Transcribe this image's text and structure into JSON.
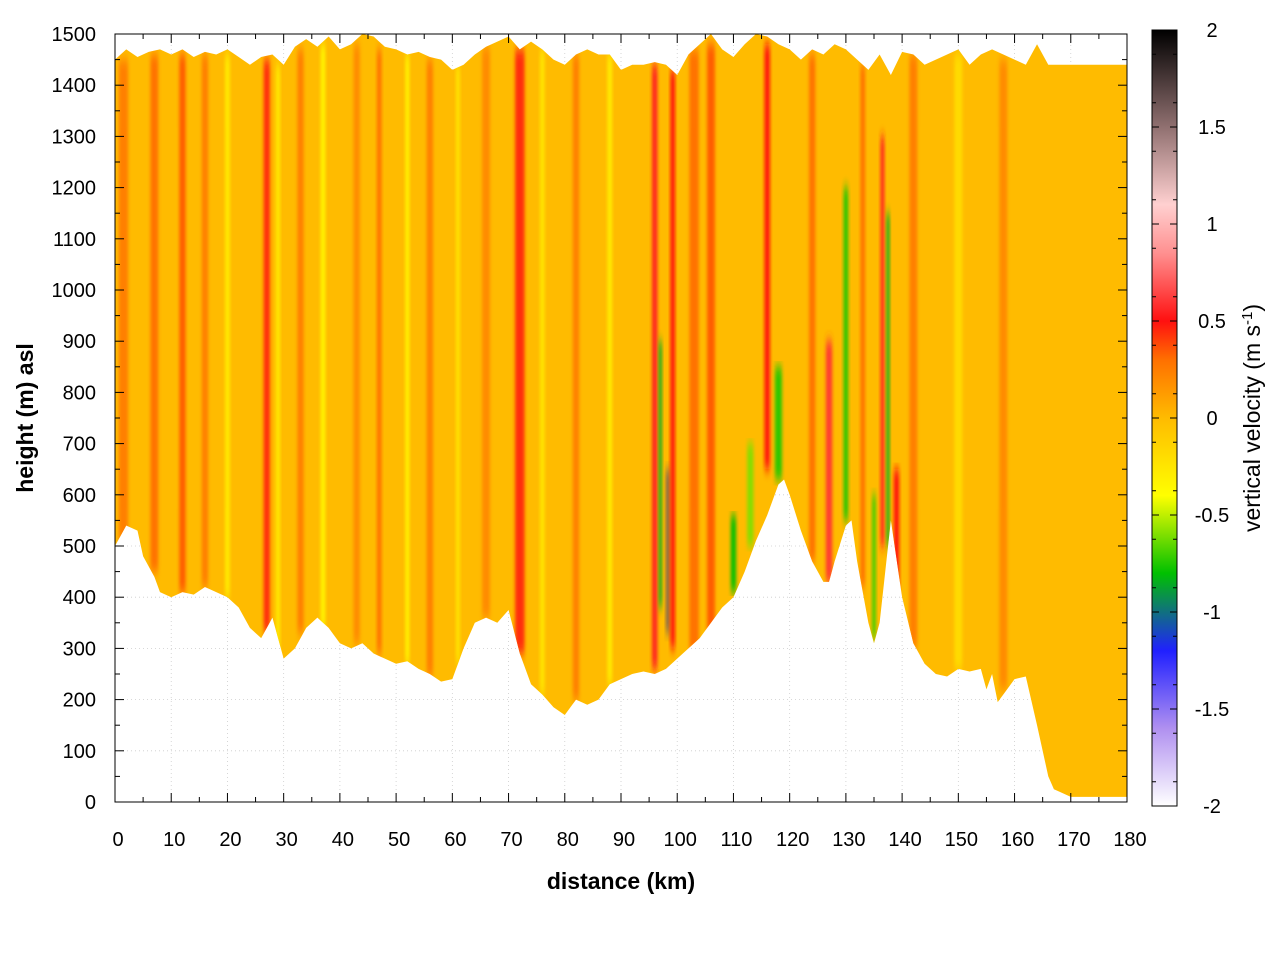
{
  "chart_data": {
    "type": "heatmap",
    "title": "",
    "xlabel": "distance (km)",
    "ylabel": "height (m) asl",
    "xlim": [
      0,
      180
    ],
    "ylim": [
      0,
      1500
    ],
    "x_ticks": [
      0,
      10,
      20,
      30,
      40,
      50,
      60,
      70,
      80,
      90,
      100,
      110,
      120,
      130,
      140,
      150,
      160,
      170,
      180
    ],
    "y_ticks": [
      0,
      100,
      200,
      300,
      400,
      500,
      600,
      700,
      800,
      900,
      1000,
      1100,
      1200,
      1300,
      1400,
      1500
    ],
    "grid": true,
    "colorbar": {
      "label_main": "vertical velocity (m s",
      "label_sup": "-1",
      "label_end": ")",
      "range": [
        -2,
        2
      ],
      "ticks": [
        "2",
        "1.5",
        "1",
        "0.5",
        "0",
        "-0.5",
        "-1",
        "-1.5",
        "-2"
      ],
      "tick_values": [
        2,
        1.5,
        1,
        0.5,
        0,
        -0.5,
        -1,
        -1.5,
        -2
      ],
      "stops": [
        {
          "value": -2.0,
          "color": "#ffffff"
        },
        {
          "value": -1.6,
          "color": "#b090f0"
        },
        {
          "value": -1.2,
          "color": "#2020ff"
        },
        {
          "value": -0.8,
          "color": "#00c000"
        },
        {
          "value": -0.4,
          "color": "#ffff00"
        },
        {
          "value": 0.0,
          "color": "#ffbb00"
        },
        {
          "value": 0.3,
          "color": "#ff7000"
        },
        {
          "value": 0.5,
          "color": "#ff1010"
        },
        {
          "value": 0.85,
          "color": "#ff9090"
        },
        {
          "value": 1.1,
          "color": "#ffd0d0"
        },
        {
          "value": 1.5,
          "color": "#907070"
        },
        {
          "value": 2.0,
          "color": "#000000"
        }
      ]
    },
    "background_value": 0.0,
    "terrain_height": {
      "x": [
        0,
        2,
        4,
        5,
        6,
        7,
        8,
        10,
        12,
        14,
        16,
        18,
        20,
        22,
        24,
        26,
        28,
        30,
        32,
        34,
        36,
        38,
        40,
        42,
        44,
        46,
        48,
        50,
        52,
        54,
        56,
        58,
        60,
        62,
        64,
        66,
        68,
        70,
        72,
        74,
        76,
        78,
        80,
        82,
        84,
        86,
        88,
        90,
        92,
        94,
        96,
        98,
        100,
        102,
        104,
        106,
        108,
        110,
        112,
        114,
        116,
        118,
        119,
        120,
        122,
        124,
        126,
        127,
        128,
        130,
        131,
        132,
        134,
        135,
        136,
        137,
        138,
        140,
        142,
        144,
        146,
        148,
        150,
        152,
        154,
        155,
        156,
        157,
        158,
        160,
        162,
        164,
        166,
        167,
        168,
        170,
        175,
        180
      ],
      "height": [
        500,
        540,
        530,
        480,
        460,
        440,
        410,
        400,
        410,
        405,
        420,
        410,
        400,
        380,
        340,
        320,
        360,
        280,
        300,
        340,
        360,
        340,
        310,
        300,
        310,
        290,
        280,
        270,
        275,
        260,
        250,
        235,
        240,
        300,
        350,
        360,
        350,
        375,
        290,
        230,
        210,
        185,
        170,
        200,
        190,
        200,
        230,
        240,
        250,
        255,
        250,
        260,
        280,
        300,
        320,
        350,
        380,
        400,
        450,
        510,
        560,
        620,
        630,
        600,
        530,
        470,
        430,
        430,
        470,
        540,
        550,
        470,
        350,
        310,
        350,
        450,
        550,
        400,
        310,
        270,
        250,
        245,
        260,
        255,
        260,
        220,
        250,
        195,
        210,
        240,
        245,
        150,
        50,
        25,
        20,
        10,
        10,
        10
      ]
    },
    "top_height": {
      "x": [
        0,
        2,
        4,
        6,
        8,
        10,
        12,
        14,
        16,
        18,
        20,
        22,
        24,
        26,
        28,
        30,
        32,
        34,
        36,
        38,
        40,
        42,
        44,
        46,
        48,
        50,
        52,
        54,
        56,
        58,
        60,
        62,
        64,
        66,
        68,
        70,
        72,
        74,
        76,
        78,
        80,
        82,
        84,
        86,
        88,
        90,
        92,
        94,
        96,
        98,
        100,
        102,
        104,
        106,
        108,
        110,
        112,
        114,
        116,
        118,
        120,
        122,
        124,
        126,
        128,
        130,
        132,
        134,
        136,
        138,
        140,
        142,
        144,
        146,
        148,
        150,
        152,
        154,
        156,
        158,
        160,
        162,
        164,
        166,
        168,
        170,
        175,
        180
      ],
      "height": [
        1450,
        1470,
        1455,
        1465,
        1470,
        1460,
        1470,
        1455,
        1465,
        1460,
        1470,
        1455,
        1440,
        1455,
        1460,
        1440,
        1475,
        1490,
        1475,
        1495,
        1470,
        1480,
        1500,
        1495,
        1475,
        1470,
        1460,
        1465,
        1455,
        1450,
        1430,
        1440,
        1460,
        1475,
        1485,
        1495,
        1470,
        1485,
        1470,
        1450,
        1440,
        1460,
        1470,
        1460,
        1460,
        1430,
        1440,
        1440,
        1445,
        1440,
        1420,
        1460,
        1480,
        1500,
        1470,
        1455,
        1480,
        1500,
        1495,
        1480,
        1470,
        1450,
        1470,
        1460,
        1480,
        1470,
        1450,
        1430,
        1460,
        1420,
        1465,
        1460,
        1440,
        1450,
        1460,
        1470,
        1440,
        1460,
        1470,
        1460,
        1450,
        1440,
        1480,
        1440,
        1440,
        1440,
        1440,
        1440
      ]
    },
    "streaks": [
      {
        "x": 1.5,
        "value": 0.25,
        "width": 1.2,
        "ymin": 500,
        "ymax": 1450
      },
      {
        "x": 7,
        "value": 0.3,
        "width": 1.0,
        "ymin": 450,
        "ymax": 1460
      },
      {
        "x": 12,
        "value": 0.35,
        "width": 0.8,
        "ymin": 410,
        "ymax": 1460
      },
      {
        "x": 16,
        "value": 0.25,
        "width": 0.8,
        "ymin": 420,
        "ymax": 1460
      },
      {
        "x": 20,
        "value": -0.3,
        "width": 0.6,
        "ymin": 400,
        "ymax": 1460
      },
      {
        "x": 27,
        "value": 0.45,
        "width": 0.8,
        "ymin": 330,
        "ymax": 1450
      },
      {
        "x": 29,
        "value": -0.3,
        "width": 0.5,
        "ymin": 290,
        "ymax": 1440
      },
      {
        "x": 33,
        "value": 0.25,
        "width": 0.8,
        "ymin": 330,
        "ymax": 1470
      },
      {
        "x": 37,
        "value": -0.35,
        "width": 0.6,
        "ymin": 340,
        "ymax": 1480
      },
      {
        "x": 43,
        "value": 0.2,
        "width": 0.8,
        "ymin": 310,
        "ymax": 1480
      },
      {
        "x": 47,
        "value": 0.3,
        "width": 0.6,
        "ymin": 290,
        "ymax": 1470
      },
      {
        "x": 52,
        "value": -0.35,
        "width": 0.5,
        "ymin": 270,
        "ymax": 1460
      },
      {
        "x": 56,
        "value": 0.25,
        "width": 0.8,
        "ymin": 245,
        "ymax": 1450
      },
      {
        "x": 61,
        "value": -0.25,
        "width": 0.5,
        "ymin": 270,
        "ymax": 1440
      },
      {
        "x": 66,
        "value": 0.2,
        "width": 1.0,
        "ymin": 360,
        "ymax": 1475
      },
      {
        "x": 72,
        "value": 0.45,
        "width": 1.2,
        "ymin": 290,
        "ymax": 1470
      },
      {
        "x": 76,
        "value": -0.25,
        "width": 0.6,
        "ymin": 210,
        "ymax": 1470
      },
      {
        "x": 82,
        "value": 0.25,
        "width": 0.8,
        "ymin": 200,
        "ymax": 1460
      },
      {
        "x": 88,
        "value": -0.3,
        "width": 0.6,
        "ymin": 230,
        "ymax": 1460
      },
      {
        "x": 96,
        "value": 0.55,
        "width": 0.7,
        "ymin": 260,
        "ymax": 1440
      },
      {
        "x": 97,
        "value": -0.85,
        "width": 0.4,
        "ymin": 380,
        "ymax": 900
      },
      {
        "x": 98.3,
        "value": 1.6,
        "width": 0.45,
        "ymin": 330,
        "ymax": 650
      },
      {
        "x": 99.2,
        "value": 0.5,
        "width": 0.6,
        "ymin": 300,
        "ymax": 1430
      },
      {
        "x": 103,
        "value": 0.3,
        "width": 1.2,
        "ymin": 290,
        "ymax": 1470
      },
      {
        "x": 106,
        "value": 0.35,
        "width": 1.0,
        "ymin": 320,
        "ymax": 1480
      },
      {
        "x": 110,
        "value": -0.8,
        "width": 0.7,
        "ymin": 410,
        "ymax": 560
      },
      {
        "x": 113,
        "value": -0.6,
        "width": 0.8,
        "ymin": 500,
        "ymax": 700
      },
      {
        "x": 116,
        "value": 0.5,
        "width": 0.7,
        "ymin": 650,
        "ymax": 1480
      },
      {
        "x": 118,
        "value": -0.75,
        "width": 0.9,
        "ymin": 630,
        "ymax": 850
      },
      {
        "x": 124,
        "value": 0.3,
        "width": 0.8,
        "ymin": 470,
        "ymax": 1460
      },
      {
        "x": 127,
        "value": 0.6,
        "width": 0.8,
        "ymin": 430,
        "ymax": 900
      },
      {
        "x": 130,
        "value": -0.75,
        "width": 0.6,
        "ymin": 550,
        "ymax": 1200
      },
      {
        "x": 133,
        "value": 0.3,
        "width": 0.6,
        "ymin": 420,
        "ymax": 1440
      },
      {
        "x": 135,
        "value": -0.7,
        "width": 0.5,
        "ymin": 320,
        "ymax": 600
      },
      {
        "x": 136.5,
        "value": 0.55,
        "width": 0.5,
        "ymin": 500,
        "ymax": 1300
      },
      {
        "x": 137.5,
        "value": -0.85,
        "width": 0.4,
        "ymin": 500,
        "ymax": 1150
      },
      {
        "x": 139,
        "value": 0.5,
        "width": 0.7,
        "ymin": 400,
        "ymax": 650
      },
      {
        "x": 142,
        "value": 0.25,
        "width": 1.0,
        "ymin": 300,
        "ymax": 1460
      },
      {
        "x": 150,
        "value": -0.2,
        "width": 1.0,
        "ymin": 260,
        "ymax": 1460
      },
      {
        "x": 158,
        "value": 0.2,
        "width": 1.0,
        "ymin": 220,
        "ymax": 1450
      }
    ]
  }
}
